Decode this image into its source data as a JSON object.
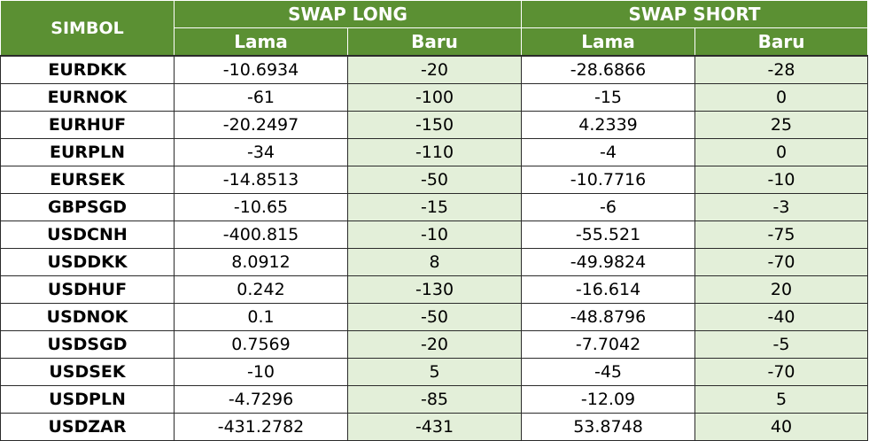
{
  "header": {
    "simbol": "SIMBOL",
    "swap_long": "SWAP LONG",
    "swap_short": "SWAP SHORT",
    "lama": "Lama",
    "baru": "Baru"
  },
  "colors": {
    "header_bg": "#5b9033",
    "header_text": "#ffffff",
    "baru_cell_bg": "#e3efd9"
  },
  "rows": [
    {
      "symbol": "EURDKK",
      "long_lama": "-10.6934",
      "long_baru": "-20",
      "short_lama": "-28.6866",
      "short_baru": "-28"
    },
    {
      "symbol": "EURNOK",
      "long_lama": "-61",
      "long_baru": "-100",
      "short_lama": "-15",
      "short_baru": "0"
    },
    {
      "symbol": "EURHUF",
      "long_lama": "-20.2497",
      "long_baru": "-150",
      "short_lama": "4.2339",
      "short_baru": "25"
    },
    {
      "symbol": "EURPLN",
      "long_lama": "-34",
      "long_baru": "-110",
      "short_lama": "-4",
      "short_baru": "0"
    },
    {
      "symbol": "EURSEK",
      "long_lama": "-14.8513",
      "long_baru": "-50",
      "short_lama": "-10.7716",
      "short_baru": "-10"
    },
    {
      "symbol": "GBPSGD",
      "long_lama": "-10.65",
      "long_baru": "-15",
      "short_lama": "-6",
      "short_baru": "-3"
    },
    {
      "symbol": "USDCNH",
      "long_lama": "-400.815",
      "long_baru": "-10",
      "short_lama": "-55.521",
      "short_baru": "-75"
    },
    {
      "symbol": "USDDKK",
      "long_lama": "8.0912",
      "long_baru": "8",
      "short_lama": "-49.9824",
      "short_baru": "-70"
    },
    {
      "symbol": "USDHUF",
      "long_lama": "0.242",
      "long_baru": "-130",
      "short_lama": "-16.614",
      "short_baru": "20"
    },
    {
      "symbol": "USDNOK",
      "long_lama": "0.1",
      "long_baru": "-50",
      "short_lama": "-48.8796",
      "short_baru": "-40"
    },
    {
      "symbol": "USDSGD",
      "long_lama": "0.7569",
      "long_baru": "-20",
      "short_lama": "-7.7042",
      "short_baru": "-5"
    },
    {
      "symbol": "USDSEK",
      "long_lama": "-10",
      "long_baru": "5",
      "short_lama": "-45",
      "short_baru": "-70"
    },
    {
      "symbol": "USDPLN",
      "long_lama": "-4.7296",
      "long_baru": "-85",
      "short_lama": "-12.09",
      "short_baru": "5"
    },
    {
      "symbol": "USDZAR",
      "long_lama": "-431.2782",
      "long_baru": "-431",
      "short_lama": "53.8748",
      "short_baru": "40"
    }
  ]
}
